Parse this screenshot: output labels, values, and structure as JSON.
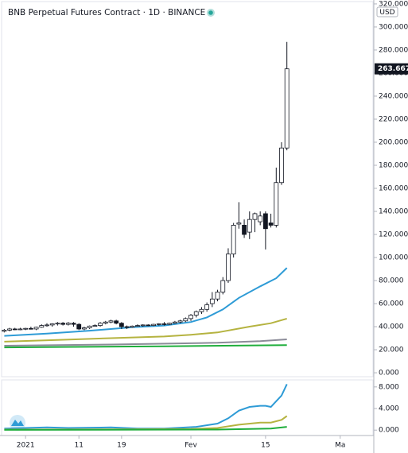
{
  "chart_data": {
    "type": "candlestick",
    "title": "BNB Perpetual Futures Contract · 1D · BINANCE",
    "currency": "USD",
    "last_price": {
      "value": 263.667,
      "label": "263.667"
    },
    "candles": [
      [
        36,
        38,
        35,
        37
      ],
      [
        37,
        39,
        36,
        38
      ],
      [
        38,
        39,
        37,
        37.5
      ],
      [
        37.5,
        39,
        37,
        38
      ],
      [
        38,
        39,
        37,
        38.5
      ],
      [
        38.5,
        40,
        37.5,
        38
      ],
      [
        38,
        40,
        37,
        39.5
      ],
      [
        39.5,
        42,
        39,
        41
      ],
      [
        41,
        43,
        40,
        41.5
      ],
      [
        41.5,
        43,
        40,
        42.5
      ],
      [
        42.5,
        44,
        41,
        43
      ],
      [
        43,
        44,
        41,
        42
      ],
      [
        42,
        44,
        41,
        43
      ],
      [
        43,
        44,
        40,
        42
      ],
      [
        42,
        43,
        37,
        38
      ],
      [
        38,
        40,
        37,
        39
      ],
      [
        39,
        41,
        38,
        40.5
      ],
      [
        40.5,
        42,
        40,
        41
      ],
      [
        41,
        44,
        40,
        43
      ],
      [
        43,
        45,
        42,
        44
      ],
      [
        44,
        46,
        43,
        45
      ],
      [
        45,
        46,
        42,
        43
      ],
      [
        43,
        44,
        38,
        40
      ],
      [
        40,
        41,
        38,
        39.5
      ],
      [
        39.5,
        41,
        39,
        40.5
      ],
      [
        40.5,
        42,
        40,
        41
      ],
      [
        41,
        42,
        40,
        41.5
      ],
      [
        41.5,
        42,
        40.5,
        41
      ],
      [
        41,
        42.5,
        40.5,
        42
      ],
      [
        42,
        43,
        41,
        42.5
      ],
      [
        42.5,
        44,
        41,
        42
      ],
      [
        42,
        43.5,
        41.5,
        43
      ],
      [
        43,
        45,
        42.5,
        44
      ],
      [
        44,
        46,
        43,
        45
      ],
      [
        45,
        48,
        44,
        47
      ],
      [
        47,
        51,
        45,
        50
      ],
      [
        50,
        54,
        48,
        53
      ],
      [
        53,
        57,
        51,
        55
      ],
      [
        55,
        61,
        53,
        59
      ],
      [
        60,
        70,
        57,
        64
      ],
      [
        64,
        72,
        62,
        70
      ],
      [
        70,
        83,
        68,
        80
      ],
      [
        80,
        108,
        78,
        103
      ],
      [
        103,
        130,
        100,
        128
      ],
      [
        129,
        148,
        125,
        130
      ],
      [
        128,
        133,
        117,
        120
      ],
      [
        122,
        140,
        116,
        133
      ],
      [
        133,
        139,
        122,
        138
      ],
      [
        131,
        140,
        128,
        136
      ],
      [
        138,
        140,
        107,
        125
      ],
      [
        130,
        138,
        126,
        128
      ],
      [
        128,
        178,
        126,
        165
      ],
      [
        165,
        200,
        163,
        195
      ],
      [
        195,
        287,
        193,
        263.667
      ]
    ],
    "lines": [
      {
        "color": "#2e9bd6",
        "x": [
          0,
          8,
          16,
          24,
          30,
          35,
          38,
          41,
          44,
          48,
          51,
          53
        ],
        "values": [
          32,
          34,
          36.5,
          39.5,
          41,
          44,
          48,
          55,
          65,
          75,
          82,
          91
        ]
      },
      {
        "color": "#b5b340",
        "x": [
          0,
          10,
          20,
          30,
          35,
          40,
          46,
          50,
          53
        ],
        "values": [
          27,
          28.5,
          30,
          31.5,
          33,
          35,
          40,
          43,
          47
        ]
      },
      {
        "color": "#8c8c99",
        "x": [
          0,
          20,
          40,
          48,
          53
        ],
        "values": [
          23.5,
          24.5,
          26,
          27.5,
          29
        ]
      },
      {
        "color": "#1fae3c",
        "x": [
          0,
          30,
          53
        ],
        "values": [
          22,
          23,
          24
        ]
      }
    ],
    "ylim": [
      -4.1,
      323.4
    ],
    "yticks": [
      {
        "value": 0,
        "label": "0.000"
      },
      {
        "value": 20,
        "label": "20.000"
      },
      {
        "value": 40,
        "label": "40.000"
      },
      {
        "value": 60,
        "label": "60.000"
      },
      {
        "value": 80,
        "label": "80.000"
      },
      {
        "value": 100,
        "label": "100.000"
      },
      {
        "value": 120,
        "label": "120.000"
      },
      {
        "value": 140,
        "label": "140.000"
      },
      {
        "value": 160,
        "label": "160.000"
      },
      {
        "value": 180,
        "label": "180.000"
      },
      {
        "value": 200,
        "label": "200.000"
      },
      {
        "value": 220,
        "label": "220.000"
      },
      {
        "value": 240,
        "label": "240.000"
      },
      {
        "value": 260,
        "label": "260.000"
      },
      {
        "value": 280,
        "label": "280.000"
      },
      {
        "value": 300,
        "label": "300.000"
      },
      {
        "value": 320,
        "label": "320.000"
      }
    ],
    "xlim": [
      -0.5,
      69.3
    ],
    "xticks": [
      {
        "value": 4,
        "label": "2021"
      },
      {
        "value": 14,
        "label": "11"
      },
      {
        "value": 22,
        "label": "19"
      },
      {
        "value": 35,
        "label": "Fev"
      },
      {
        "value": 49,
        "label": "15"
      },
      {
        "value": 63,
        "label": "Ma"
      }
    ],
    "indicator": {
      "ylim": [
        -1.0,
        9.3
      ],
      "yticks": [
        {
          "value": 0,
          "label": "0.000"
        },
        {
          "value": 4,
          "label": "4.000"
        },
        {
          "value": 8,
          "label": "8.000"
        }
      ],
      "lines": [
        {
          "color": "#2e9bd6",
          "x": [
            0,
            8,
            12,
            20,
            25,
            30,
            36,
            40,
            42,
            44,
            46,
            48,
            49,
            50,
            52,
            53
          ],
          "values": [
            0.3,
            0.5,
            0.4,
            0.5,
            0.3,
            0.3,
            0.6,
            1.2,
            2.2,
            3.6,
            4.3,
            4.5,
            4.5,
            4.3,
            6.4,
            8.5
          ]
        },
        {
          "color": "#b5b340",
          "x": [
            0,
            20,
            35,
            40,
            44,
            48,
            50,
            52,
            53
          ],
          "values": [
            0.1,
            0.15,
            0.2,
            0.4,
            1,
            1.4,
            1.4,
            1.9,
            2.6
          ]
        },
        {
          "color": "#1fae3c",
          "x": [
            0,
            40,
            50,
            53
          ],
          "values": [
            0.05,
            0.1,
            0.3,
            0.6
          ]
        }
      ]
    }
  }
}
